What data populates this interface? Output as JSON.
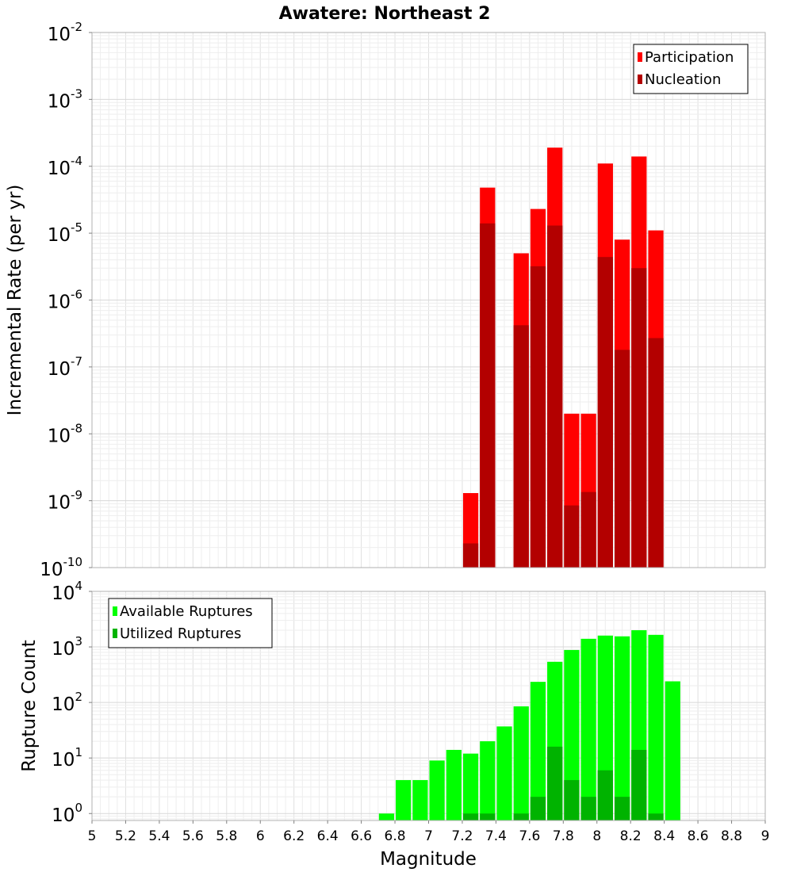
{
  "chart_data": {
    "title": "Awatere: Northeast 2",
    "xlabel": "Magnitude",
    "xlim": [
      5,
      9
    ],
    "x_ticks": [
      "5",
      "5.2",
      "5.4",
      "5.6",
      "5.8",
      "6",
      "6.2",
      "6.4",
      "6.6",
      "6.8",
      "7",
      "7.2",
      "7.4",
      "7.6",
      "7.8",
      "8",
      "8.2",
      "8.4",
      "8.6",
      "8.8",
      "9"
    ],
    "grid": true,
    "panels": [
      {
        "type": "bar",
        "ylabel": "Incremental Rate (per yr)",
        "yscale": "log",
        "ylim": [
          1e-10,
          0.01
        ],
        "y_tick_exponents": [
          "-10",
          "-9",
          "-8",
          "-7",
          "-6",
          "-5",
          "-4",
          "-3",
          "-2"
        ],
        "legend_position": "top-right",
        "series": [
          {
            "name": "Participation",
            "color": "#ff0000",
            "x": [
              7.25,
              7.35,
              7.55,
              7.65,
              7.75,
              7.85,
              7.95,
              8.05,
              8.15,
              8.25,
              8.35
            ],
            "values": [
              1.3e-09,
              4.8e-05,
              5e-06,
              2.3e-05,
              0.00019,
              2e-08,
              2e-08,
              0.00011,
              8e-06,
              0.00014,
              1.1e-05
            ]
          },
          {
            "name": "Nucleation",
            "color": "#b30000",
            "x": [
              7.25,
              7.35,
              7.55,
              7.65,
              7.75,
              7.85,
              7.95,
              8.05,
              8.15,
              8.25,
              8.35
            ],
            "values": [
              2.3e-10,
              1.4e-05,
              4.2e-07,
              3.2e-06,
              1.3e-05,
              8.5e-10,
              1.35e-09,
              4.4e-06,
              1.8e-07,
              3e-06,
              2.7e-07
            ]
          }
        ]
      },
      {
        "type": "bar",
        "ylabel": "Rupture Count",
        "yscale": "log",
        "ylim": [
          0.75,
          10000
        ],
        "y_tick_exponents": [
          "0",
          "1",
          "2",
          "3",
          "4"
        ],
        "legend_position": "top-left",
        "series": [
          {
            "name": "Available Ruptures",
            "color": "#00ff00",
            "x": [
              6.75,
              6.85,
              6.95,
              7.05,
              7.15,
              7.25,
              7.35,
              7.45,
              7.55,
              7.65,
              7.75,
              7.85,
              7.95,
              8.05,
              8.15,
              8.25,
              8.35,
              8.45
            ],
            "values": [
              1,
              4,
              4,
              9,
              14,
              12,
              20,
              37,
              85,
              235,
              540,
              880,
              1400,
              1600,
              1550,
              2000,
              1650,
              240
            ]
          },
          {
            "name": "Utilized Ruptures",
            "color": "#00b300",
            "x": [
              7.25,
              7.35,
              7.55,
              7.65,
              7.75,
              7.85,
              7.95,
              8.05,
              8.15,
              8.25,
              8.35
            ],
            "values": [
              1,
              1,
              1,
              2,
              16,
              4,
              2,
              6,
              2,
              14,
              1
            ]
          }
        ]
      }
    ]
  }
}
